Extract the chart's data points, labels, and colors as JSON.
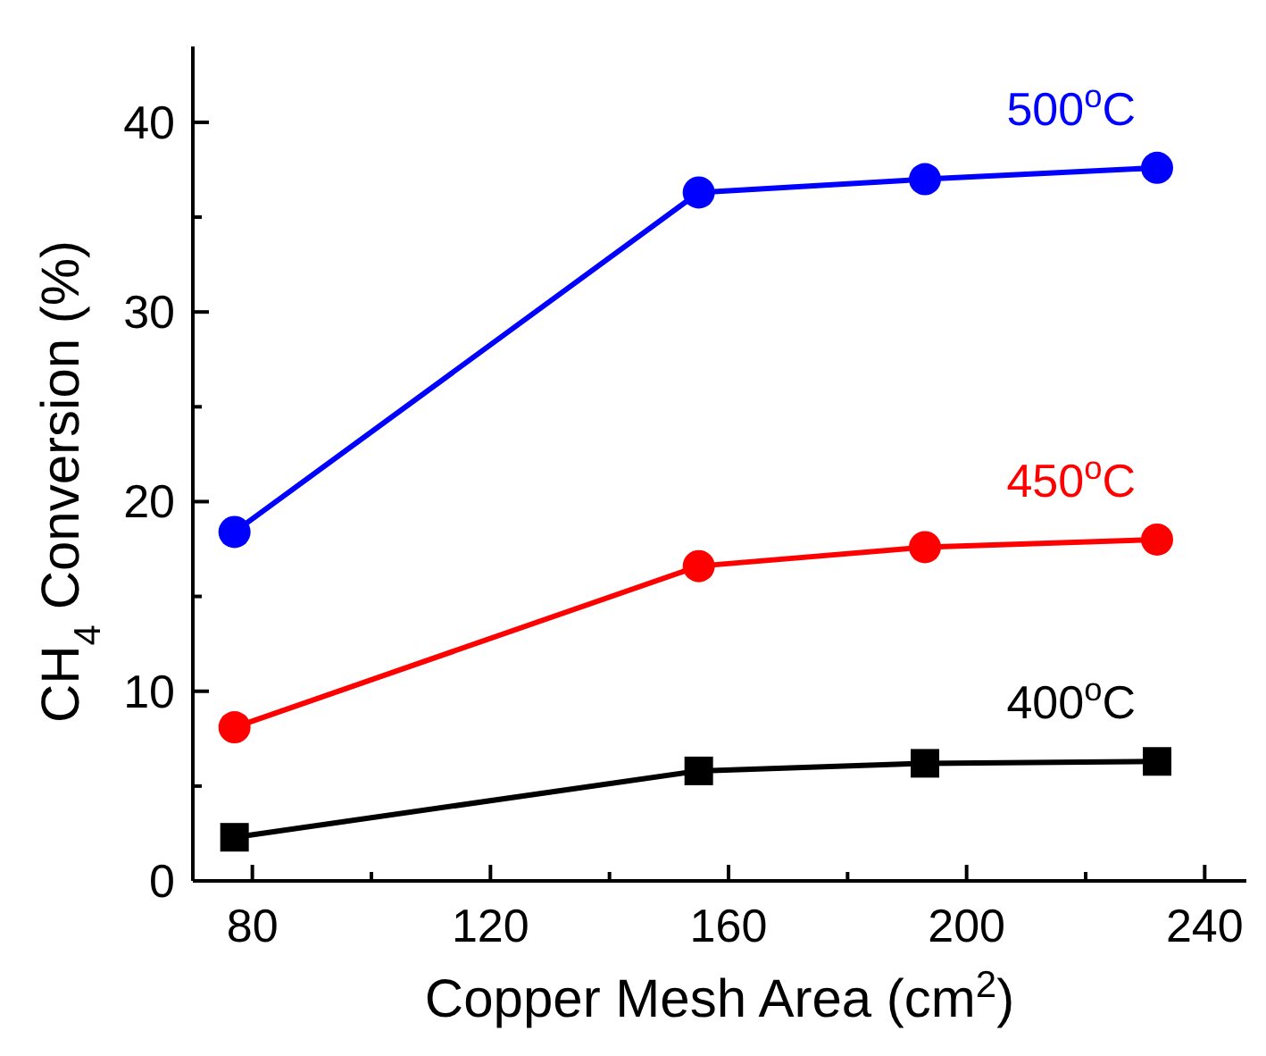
{
  "chart_data": {
    "type": "line",
    "xlabel": "Copper Mesh Area (cm$^{2}$)",
    "ylabel": "CH$_{4}$ Conversion (%)",
    "x": [
      77,
      155,
      193,
      232
    ],
    "xlim": [
      70,
      247
    ],
    "xticks": [
      80,
      {
        "value": 100,
        "label": null
      },
      120,
      {
        "value": 140,
        "label": null
      },
      160,
      {
        "value": 180,
        "label": null
      },
      200,
      {
        "value": 220,
        "label": null
      },
      240
    ],
    "ylim": [
      0,
      44
    ],
    "yticks": [
      0,
      {
        "value": 5,
        "label": null
      },
      10,
      {
        "value": 15,
        "label": null
      },
      20,
      {
        "value": 25,
        "label": null
      },
      30,
      {
        "value": 35,
        "label": null
      },
      40
    ],
    "line_style": "solid",
    "series": [
      {
        "name": "400$^{o}$C",
        "color": "#000000",
        "marker": "square",
        "values": [
          2.3,
          5.8,
          6.2,
          6.3
        ]
      },
      {
        "name": "450$^{o}$C",
        "color": "#ff0000",
        "marker": "circle",
        "values": [
          8.1,
          16.6,
          17.6,
          18.0
        ]
      },
      {
        "name": "500$^{o}$C",
        "color": "#0000ff",
        "marker": "circle",
        "values": [
          18.4,
          36.3,
          37.0,
          37.6
        ]
      }
    ]
  }
}
